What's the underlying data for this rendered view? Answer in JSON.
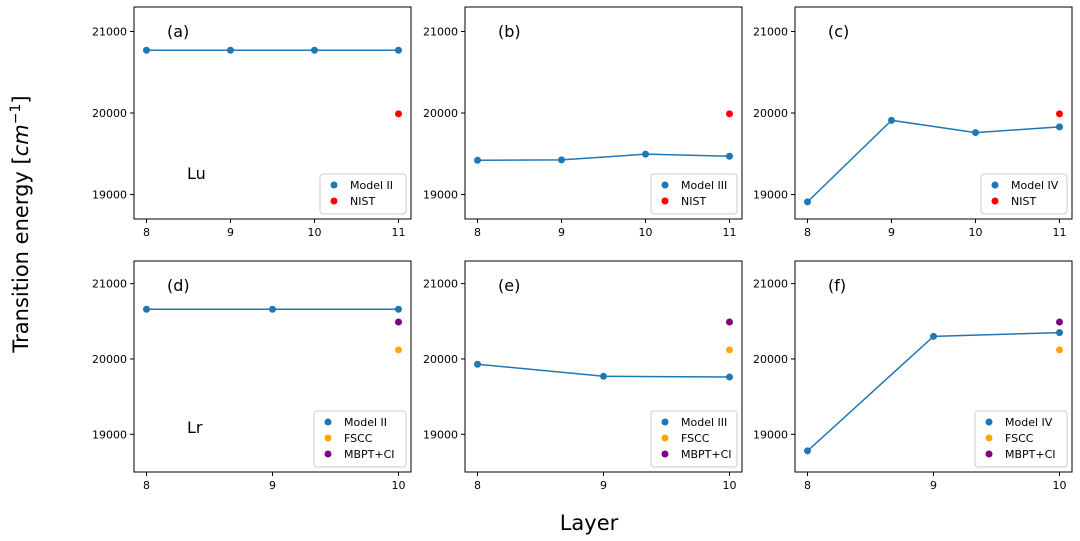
{
  "figure": {
    "xlabel": "Layer",
    "ylabel": "Transition energy [cm⁻¹]",
    "ylabel_main": "Transition energy [",
    "ylabel_unit": "cm",
    "ylabel_exp": "−1",
    "ylabel_close": "]"
  },
  "colors": {
    "model": "#1f77b4",
    "NIST": "#ff0000",
    "FSCC": "#ffa500",
    "MBPT+CI": "#800080"
  },
  "chart_data": [
    {
      "type": "line",
      "panel": "(a)",
      "element": "Lu",
      "x": [
        8,
        9,
        10,
        11
      ],
      "ylim": [
        18700,
        21300
      ],
      "yticks": [
        19000,
        20000,
        21000
      ],
      "legend": "lower right",
      "series": [
        {
          "name": "Model II",
          "x": [
            8,
            9,
            10,
            11
          ],
          "values": [
            20770,
            20770,
            20770,
            20770
          ],
          "line": true,
          "color": "#1f77b4"
        },
        {
          "name": "NIST",
          "x": [
            11
          ],
          "values": [
            19990
          ],
          "line": false,
          "color": "#ff0000"
        }
      ]
    },
    {
      "type": "line",
      "panel": "(b)",
      "element": "",
      "x": [
        8,
        9,
        10,
        11
      ],
      "ylim": [
        18700,
        21300
      ],
      "yticks": [
        19000,
        20000,
        21000
      ],
      "legend": "lower right",
      "series": [
        {
          "name": "Model III",
          "x": [
            8,
            9,
            10,
            11
          ],
          "values": [
            19420,
            19425,
            19495,
            19470
          ],
          "line": true,
          "color": "#1f77b4"
        },
        {
          "name": "NIST",
          "x": [
            11
          ],
          "values": [
            19990
          ],
          "line": false,
          "color": "#ff0000"
        }
      ]
    },
    {
      "type": "line",
      "panel": "(c)",
      "element": "",
      "x": [
        8,
        9,
        10,
        11
      ],
      "ylim": [
        18700,
        21300
      ],
      "yticks": [
        19000,
        20000,
        21000
      ],
      "legend": "lower right",
      "series": [
        {
          "name": "Model IV",
          "x": [
            8,
            9,
            10,
            11
          ],
          "values": [
            18910,
            19910,
            19760,
            19830
          ],
          "line": true,
          "color": "#1f77b4"
        },
        {
          "name": "NIST",
          "x": [
            11
          ],
          "values": [
            19990
          ],
          "line": false,
          "color": "#ff0000"
        }
      ]
    },
    {
      "type": "line",
      "panel": "(d)",
      "element": "Lr",
      "x": [
        8,
        9,
        10
      ],
      "ylim": [
        18500,
        21300
      ],
      "yticks": [
        19000,
        20000,
        21000
      ],
      "legend": "lower right",
      "series": [
        {
          "name": "Model II",
          "x": [
            8,
            9,
            10
          ],
          "values": [
            20660,
            20660,
            20660
          ],
          "line": true,
          "color": "#1f77b4"
        },
        {
          "name": "FSCC",
          "x": [
            10
          ],
          "values": [
            20120
          ],
          "line": false,
          "color": "#ffa500"
        },
        {
          "name": "MBPT+CI",
          "x": [
            10
          ],
          "values": [
            20490
          ],
          "line": false,
          "color": "#800080"
        }
      ]
    },
    {
      "type": "line",
      "panel": "(e)",
      "element": "",
      "x": [
        8,
        9,
        10
      ],
      "ylim": [
        18500,
        21300
      ],
      "yticks": [
        19000,
        20000,
        21000
      ],
      "legend": "lower right",
      "series": [
        {
          "name": "Model III",
          "x": [
            8,
            9,
            10
          ],
          "values": [
            19930,
            19770,
            19760
          ],
          "line": true,
          "color": "#1f77b4"
        },
        {
          "name": "FSCC",
          "x": [
            10
          ],
          "values": [
            20120
          ],
          "line": false,
          "color": "#ffa500"
        },
        {
          "name": "MBPT+CI",
          "x": [
            10
          ],
          "values": [
            20490
          ],
          "line": false,
          "color": "#800080"
        }
      ]
    },
    {
      "type": "line",
      "panel": "(f)",
      "element": "",
      "x": [
        8,
        9,
        10
      ],
      "ylim": [
        18500,
        21300
      ],
      "yticks": [
        19000,
        20000,
        21000
      ],
      "legend": "lower right",
      "series": [
        {
          "name": "Model IV",
          "x": [
            8,
            9,
            10
          ],
          "values": [
            18780,
            20300,
            20350
          ],
          "line": true,
          "color": "#1f77b4"
        },
        {
          "name": "FSCC",
          "x": [
            10
          ],
          "values": [
            20120
          ],
          "line": false,
          "color": "#ffa500"
        },
        {
          "name": "MBPT+CI",
          "x": [
            10
          ],
          "values": [
            20490
          ],
          "line": false,
          "color": "#800080"
        }
      ]
    }
  ]
}
